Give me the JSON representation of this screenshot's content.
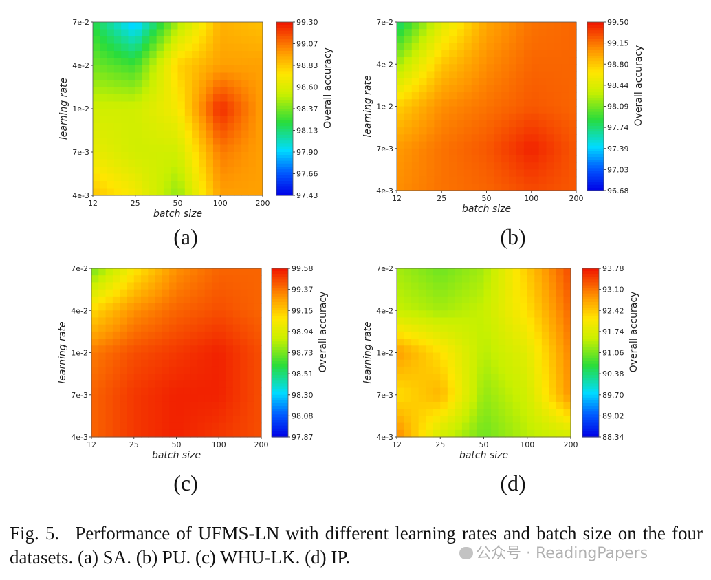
{
  "chart_data": [
    {
      "type": "heatmap",
      "panel_label": "(a)",
      "x_ticks": [
        "12",
        "25",
        "50",
        "100",
        "200"
      ],
      "y_ticks": [
        "7e-2",
        "4e-2",
        "1e-2",
        "7e-3",
        "4e-3"
      ],
      "xlabel": "batch size",
      "ylabel": "learning rate",
      "colorbar_label": "Overall accuracy",
      "colorbar_ticks": [
        "99.30",
        "99.07",
        "98.83",
        "98.60",
        "98.37",
        "98.13",
        "97.90",
        "97.66",
        "97.43"
      ],
      "vmin": 97.43,
      "vmax": 99.3,
      "z": [
        [
          98.2,
          97.85,
          98.45,
          98.9,
          98.85
        ],
        [
          98.35,
          98.25,
          98.8,
          98.95,
          98.95
        ],
        [
          98.55,
          98.55,
          98.7,
          99.25,
          98.95
        ],
        [
          98.65,
          98.55,
          98.55,
          99.05,
          98.95
        ],
        [
          98.85,
          98.7,
          98.4,
          98.95,
          98.95
        ]
      ]
    },
    {
      "type": "heatmap",
      "panel_label": "(b)",
      "x_ticks": [
        "12",
        "25",
        "50",
        "100",
        "200"
      ],
      "y_ticks": [
        "7e-2",
        "4e-2",
        "1e-2",
        "7e-3",
        "4e-3"
      ],
      "xlabel": "batch size",
      "ylabel": "learning rate",
      "colorbar_label": "Overall accuracy",
      "colorbar_ticks": [
        "99.50",
        "99.15",
        "98.80",
        "98.44",
        "98.09",
        "97.74",
        "97.39",
        "97.03",
        "96.68"
      ],
      "vmin": 96.68,
      "vmax": 99.5,
      "z": [
        [
          97.7,
          98.45,
          98.95,
          99.15,
          99.2
        ],
        [
          98.2,
          98.8,
          99.05,
          99.2,
          99.2
        ],
        [
          98.75,
          99.05,
          99.15,
          99.25,
          99.2
        ],
        [
          99.0,
          99.15,
          99.25,
          99.45,
          99.25
        ],
        [
          99.05,
          99.15,
          99.2,
          99.3,
          99.25
        ]
      ]
    },
    {
      "type": "heatmap",
      "panel_label": "(c)",
      "x_ticks": [
        "12",
        "25",
        "50",
        "100",
        "200"
      ],
      "y_ticks": [
        "7e-2",
        "4e-2",
        "1e-2",
        "7e-3",
        "4e-3"
      ],
      "xlabel": "batch size",
      "ylabel": "learning rate",
      "colorbar_label": "Overall accuracy",
      "colorbar_ticks": [
        "99.58",
        "99.37",
        "99.15",
        "98.94",
        "98.73",
        "98.51",
        "98.30",
        "98.08",
        "97.87"
      ],
      "vmin": 97.87,
      "vmax": 99.58,
      "z": [
        [
          98.7,
          99.05,
          99.3,
          99.4,
          99.4
        ],
        [
          99.1,
          99.3,
          99.4,
          99.45,
          99.4
        ],
        [
          99.35,
          99.45,
          99.5,
          99.55,
          99.45
        ],
        [
          99.4,
          99.5,
          99.55,
          99.55,
          99.45
        ],
        [
          99.4,
          99.5,
          99.55,
          99.5,
          99.45
        ]
      ]
    },
    {
      "type": "heatmap",
      "panel_label": "(d)",
      "x_ticks": [
        "12",
        "25",
        "50",
        "100",
        "200"
      ],
      "y_ticks": [
        "7e-2",
        "4e-2",
        "1e-2",
        "7e-3",
        "4e-3"
      ],
      "xlabel": "batch size",
      "ylabel": "learning rate",
      "colorbar_label": "Overall accuracy",
      "colorbar_ticks": [
        "93.78",
        "93.10",
        "92.42",
        "91.74",
        "91.06",
        "90.38",
        "89.70",
        "89.02",
        "88.34"
      ],
      "vmin": 88.34,
      "vmax": 93.78,
      "z": [
        [
          91.3,
          91.0,
          91.3,
          92.4,
          93.4
        ],
        [
          91.5,
          91.3,
          91.5,
          92.2,
          93.2
        ],
        [
          92.8,
          92.2,
          91.4,
          91.8,
          93.0
        ],
        [
          92.2,
          92.6,
          91.2,
          91.6,
          92.9
        ],
        [
          93.0,
          91.6,
          91.0,
          91.4,
          91.6
        ]
      ]
    }
  ],
  "caption": {
    "fig_label": "Fig. 5.",
    "text": "Performance of UFMS-LN with different learning rates and batch size on the four datasets. (a) SA. (b) PU. (c) WHU-LK. (d) IP."
  },
  "watermark": "公众号 · ReadingPapers"
}
